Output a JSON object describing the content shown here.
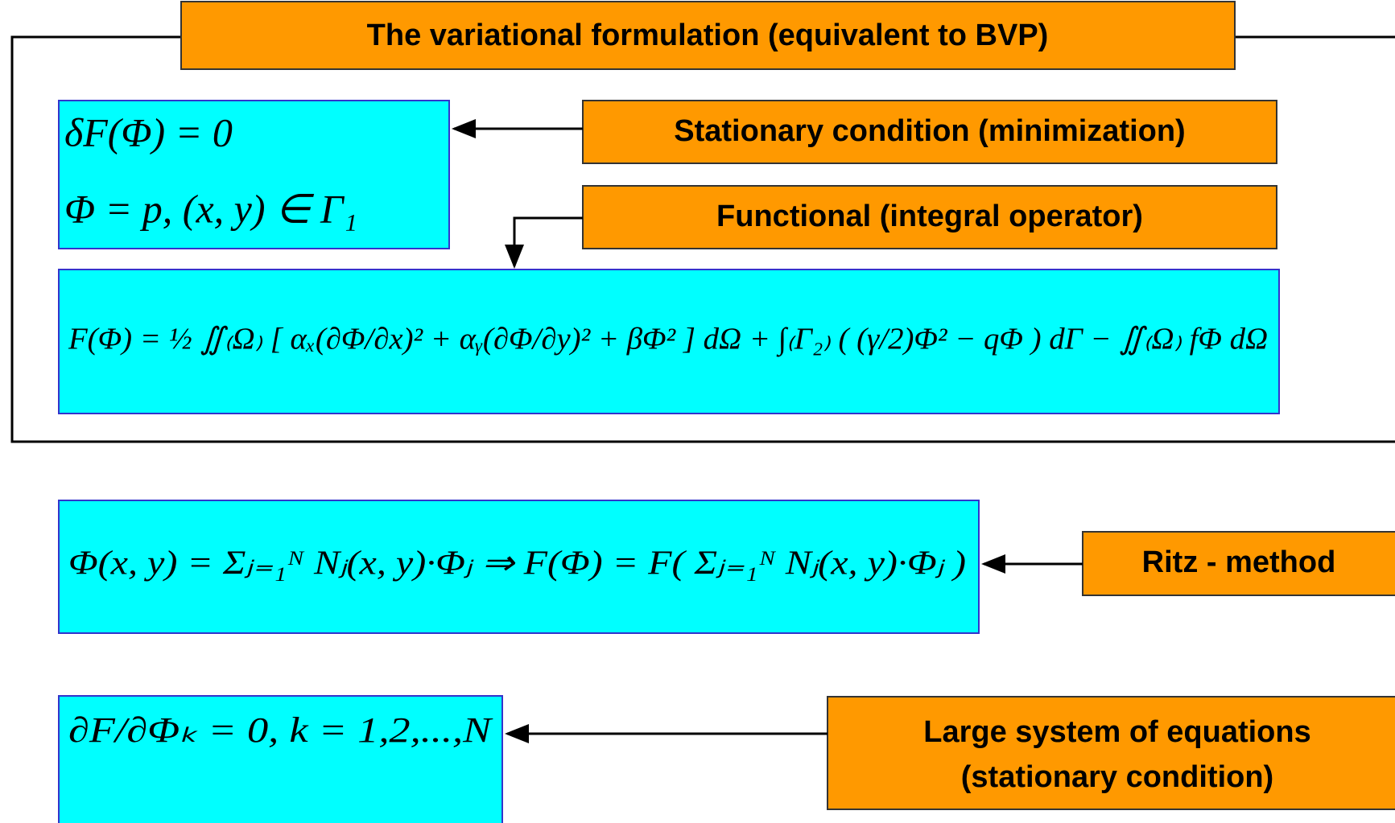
{
  "header": {
    "title": "The variational formulation (equivalent to BVP)"
  },
  "labels": {
    "stationary": "Stationary condition (minimization)",
    "functional": "Functional (integral operator)",
    "ritz": "Ritz - method",
    "large_1": "Large system of equations",
    "large_2": "(stationary condition)"
  },
  "formulas": {
    "variation": "δF(Φ) = 0",
    "boundary": "Φ = p,   (x, y) ∈ Γ₁",
    "functional": "F(Φ) = ½ ∬₍Ω₎ [ αₓ(∂Φ/∂x)² + αᵧ(∂Φ/∂y)² + βΦ² ] dΩ + ∫₍Γ₂₎ ( (γ/2)Φ² − qΦ ) dΓ − ∬₍Ω₎ fΦ dΩ",
    "ritz": "Φ(x, y) = Σⱼ₌₁ᴺ Nⱼ(x, y)·Φⱼ  ⇒  F(Φ) = F( Σⱼ₌₁ᴺ Nⱼ(x, y)·Φⱼ )",
    "system": "∂F/∂Φₖ = 0,    k = 1,2,...,N"
  }
}
